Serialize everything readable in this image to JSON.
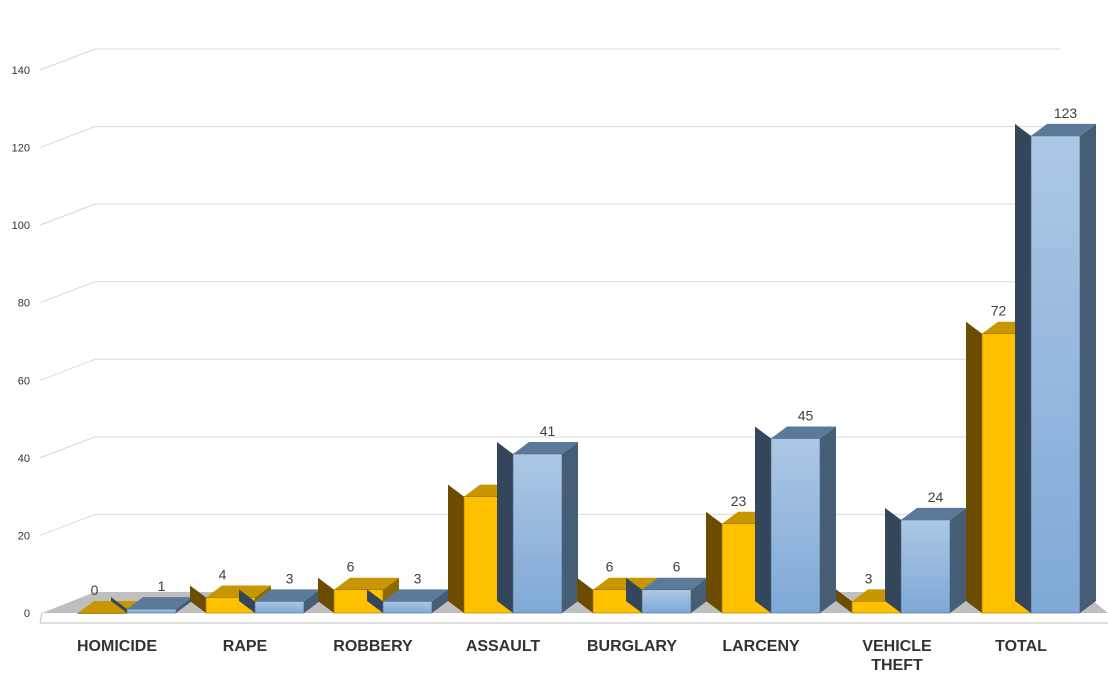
{
  "chart_data": {
    "type": "bar",
    "style": "3d-clustered-column",
    "title": "",
    "xlabel": "",
    "ylabel": "",
    "ylim": [
      0,
      140
    ],
    "yticks": [
      0,
      20,
      40,
      60,
      80,
      100,
      120,
      140
    ],
    "grid": true,
    "legend": "none",
    "categories": [
      [
        "HOMICIDE"
      ],
      [
        "RAPE"
      ],
      [
        "ROBBERY"
      ],
      [
        "ASSAULT"
      ],
      [
        "BURGLARY"
      ],
      [
        "LARCENY"
      ],
      [
        "VEHICLE",
        "THEFT"
      ],
      [
        "TOTAL"
      ]
    ],
    "series": [
      {
        "color": "#FFC000",
        "values": [
          0,
          4,
          6,
          30,
          6,
          23,
          3,
          72
        ],
        "labels": [
          "0",
          "4",
          "6",
          "",
          "6",
          "23",
          "3",
          "72"
        ]
      },
      {
        "color": "#7FA9D6",
        "values": [
          1,
          3,
          3,
          41,
          6,
          45,
          24,
          123
        ],
        "labels": [
          "1",
          "3",
          "3",
          "41",
          "6",
          "45",
          "24",
          "123"
        ]
      }
    ]
  }
}
